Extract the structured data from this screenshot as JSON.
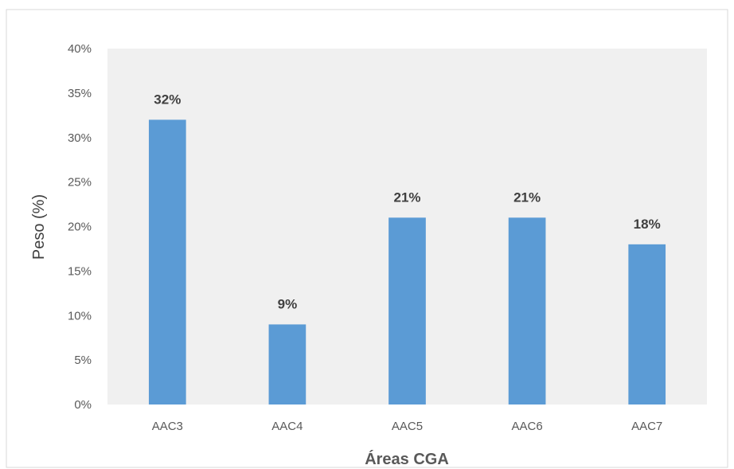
{
  "chart_data": {
    "type": "bar",
    "categories": [
      "AAC3",
      "AAC4",
      "AAC5",
      "AAC6",
      "AAC7"
    ],
    "values": [
      32,
      9,
      21,
      21,
      18
    ],
    "data_labels": [
      "32%",
      "9%",
      "21%",
      "21%",
      "18%"
    ],
    "xlabel": "Áreas CGA",
    "ylabel": "Peso (%)",
    "ylim": [
      0,
      40
    ],
    "yticks": [
      0,
      5,
      10,
      15,
      20,
      25,
      30,
      35,
      40
    ],
    "ytick_labels": [
      "0%",
      "5%",
      "10%",
      "15%",
      "20%",
      "25%",
      "30%",
      "35%",
      "40%"
    ],
    "grid": false,
    "legend": "none",
    "colors": {
      "bar": "#5b9bd5",
      "plot_background": "#f0f0f0",
      "text": "#595959",
      "data_label": "#404040",
      "axis_title": "#404040"
    }
  }
}
